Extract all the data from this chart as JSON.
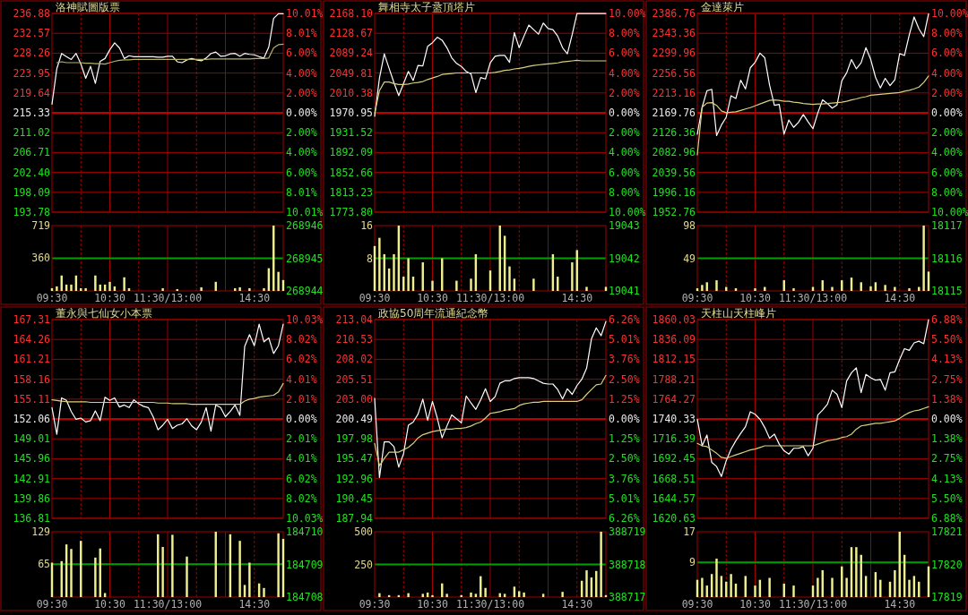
{
  "chart_data": [
    {
      "type": "line",
      "title": "洛神賦圖版票",
      "categories": [
        null,
        null,
        null,
        null,
        null,
        null,
        null,
        null,
        null,
        null,
        null,
        null,
        null,
        null,
        null,
        null,
        null,
        null,
        null,
        null,
        null,
        null,
        null,
        null,
        null,
        null,
        null,
        null,
        null,
        null,
        null,
        null,
        null,
        null,
        null,
        null,
        null,
        null,
        null,
        null,
        null,
        null,
        null,
        null,
        null,
        null,
        null,
        null,
        null
      ],
      "ylim": [
        193.78,
        236.88
      ],
      "yticks": [
        236.88,
        232.57,
        228.26,
        223.95,
        219.64,
        215.33,
        211.02,
        206.71,
        {
          "value": 202.4,
          "label": "202.40"
        },
        198.09,
        193.78
      ],
      "y2lim": [
        -10.01,
        10.01
      ],
      "y2ticks": [
        {
          "value": 10.01,
          "label": "10.01%"
        },
        {
          "value": 8.01,
          "label": "8.01%"
        },
        {
          "value": 6,
          "label": "6.00%"
        },
        {
          "value": 4,
          "label": "4.00%"
        },
        {
          "value": 2,
          "label": "2.00%"
        },
        {
          "value": 0,
          "label": "0.00%"
        },
        {
          "value": -2,
          "label": "2.00%"
        },
        {
          "value": -4,
          "label": "4.00%"
        },
        {
          "value": -6,
          "label": "6.00%"
        },
        {
          "value": -8.01,
          "label": "8.01%"
        },
        {
          "value": -10.01,
          "label": "10.01%"
        }
      ],
      "grid": true,
      "tick_labels": "y",
      "ref_lines": [
        {
          "axis": "y",
          "value": 215.33,
          "color": "#c00000"
        }
      ],
      "series": [
        {
          "color": "#ffffff",
          "values": [
            217.2,
            224.9,
            228.2,
            227.5,
            226.9,
            228.2,
            225.9,
            222.8,
            225.4,
            221.7,
            226.5,
            227.1,
            229.0,
            230.5,
            229.4,
            227.1,
            227.7,
            227.5,
            227.5,
            227.5,
            227.5,
            227.5,
            227.4,
            227.4,
            227.6,
            227.6,
            226.4,
            226.2,
            226.8,
            227.1,
            226.8,
            226.6,
            227.2,
            228.2,
            228.5,
            227.6,
            227.7,
            228.1,
            228.2,
            227.6,
            228.2,
            228.0,
            227.9,
            227.5,
            227.2,
            229.6,
            235.8,
            236.8,
            236.8
          ]
        },
        {
          "color": "#b8b068",
          "values": [
            null,
            226.2,
            226.4,
            226.2,
            226.2,
            226.2,
            226.2,
            226.1,
            226.1,
            226.0,
            226.0,
            225.9,
            226.2,
            226.5,
            226.7,
            226.8,
            226.8,
            226.9,
            226.9,
            226.9,
            226.9,
            226.9,
            226.9,
            226.9,
            226.9,
            226.9,
            226.9,
            226.9,
            226.9,
            226.9,
            226.9,
            226.9,
            226.9,
            227.0,
            227.0,
            227.0,
            227.0,
            227.0,
            227.0,
            227.0,
            227.0,
            227.0,
            227.1,
            227.1,
            227.1,
            227.2,
            229.4,
            230.1,
            230.2
          ]
        }
      ]
    },
    {
      "type": "line",
      "title": "舞相寺太子盝頂塔片",
      "categories": [
        null,
        null,
        null,
        null,
        null,
        null,
        null,
        null,
        null,
        null,
        null,
        null,
        null,
        null,
        null,
        null,
        null,
        null,
        null,
        null,
        null,
        null,
        null,
        null,
        null,
        null,
        null,
        null,
        null,
        null,
        null,
        null,
        null,
        null,
        null,
        null,
        null,
        null,
        null,
        null,
        null,
        null,
        null,
        null,
        null,
        null,
        null,
        null,
        null
      ],
      "ylim": [
        1773.8,
        2168.1
      ],
      "yticks": [
        {
          "value": 2168.1,
          "label": "2168.10"
        },
        2128.67,
        2089.24,
        2049.81,
        2010.38,
        1970.95,
        1931.52,
        1892.09,
        1852.66,
        1813.23,
        {
          "value": 1773.8,
          "label": "1773.80"
        }
      ],
      "y2lim": [
        -10,
        10
      ],
      "y2ticks": [
        {
          "value": 10,
          "label": "10.00%"
        },
        {
          "value": 8,
          "label": "8.00%"
        },
        {
          "value": 6,
          "label": "6.00%"
        },
        {
          "value": 4,
          "label": "4.00%"
        },
        {
          "value": 2,
          "label": "2.00%"
        },
        {
          "value": 0,
          "label": "0.00%"
        },
        {
          "value": -2,
          "label": "2.00%"
        },
        {
          "value": -4,
          "label": "4.00%"
        },
        {
          "value": -6,
          "label": "6.00%"
        },
        {
          "value": -8,
          "label": "8.00%"
        },
        {
          "value": -10,
          "label": "10.00%"
        }
      ],
      "grid": true,
      "tick_labels": "y",
      "ref_lines": [
        {
          "axis": "y",
          "value": 1970.95,
          "color": "#c00000"
        }
      ],
      "series": [
        {
          "color": "#ffffff",
          "values": [
            1964,
            2040,
            2088,
            2059,
            2031,
            2005,
            2029,
            2053,
            2035,
            2065,
            2064,
            2103,
            2110,
            2121,
            2115,
            2100,
            2080,
            2069,
            2063,
            2053,
            2048,
            2011,
            2041,
            2038,
            2070,
            2083,
            2085,
            2085,
            2071,
            2130,
            2100,
            2123,
            2145,
            2136,
            2127,
            2149,
            2138,
            2136,
            2123,
            2100,
            2088,
            2126,
            2168,
            2168,
            2168,
            2168,
            2168,
            2168,
            2168
          ]
        },
        {
          "color": "#d8d080",
          "values": [
            1970,
            2015,
            2032,
            2032,
            2029,
            2027,
            2027,
            2028,
            2030,
            2031,
            2033,
            2037,
            2040,
            2043,
            2047,
            2048,
            2049,
            2050,
            2050,
            2050,
            2050,
            2050,
            2050,
            2050,
            2050,
            2051,
            2053,
            2055,
            2056,
            2058,
            2059,
            2061,
            2063,
            2065,
            2066,
            2067,
            2068,
            2069,
            2070,
            2072,
            2073,
            2074,
            2075,
            2074,
            2074,
            2074,
            2074,
            2074,
            2074
          ]
        }
      ]
    },
    {
      "type": "line",
      "title": "金達萊片",
      "categories": [
        null,
        null,
        null,
        null,
        null,
        null,
        null,
        null,
        null,
        null,
        null,
        null,
        null,
        null,
        null,
        null,
        null,
        null,
        null,
        null,
        null,
        null,
        null,
        null,
        null,
        null,
        null,
        null,
        null,
        null,
        null,
        null,
        null,
        null,
        null,
        null,
        null,
        null,
        null,
        null,
        null,
        null,
        null,
        null,
        null,
        null,
        null,
        null,
        null
      ],
      "ylim": [
        1952.76,
        2386.76
      ],
      "yticks": [
        2386.76,
        2343.36,
        2299.96,
        2256.56,
        2213.16,
        2169.76,
        2126.36,
        2082.96,
        2039.56,
        1996.16,
        1952.76
      ],
      "y2lim": [
        -10,
        10
      ],
      "y2ticks": [
        {
          "value": 10,
          "label": "10.00%"
        },
        {
          "value": 8,
          "label": "8.00%"
        },
        {
          "value": 6,
          "label": "6.00%"
        },
        {
          "value": 4,
          "label": "4.00%"
        },
        {
          "value": 2,
          "label": "2.00%"
        },
        {
          "value": 0,
          "label": "0.00%"
        },
        {
          "value": -2,
          "label": "2.00%"
        },
        {
          "value": -4,
          "label": "4.00%"
        },
        {
          "value": -6,
          "label": "6.00%"
        },
        {
          "value": -8,
          "label": "8.00%"
        },
        {
          "value": -10,
          "label": "10.00%"
        }
      ],
      "grid": true,
      "tick_labels": "y",
      "ref_lines": [
        {
          "axis": "y",
          "value": 2169.76,
          "color": "#c00000"
        }
      ],
      "series": [
        {
          "color": "#ffffff",
          "values": [
            2123,
            2182,
            2218,
            2221,
            2120,
            2143,
            2160,
            2207,
            2201,
            2241,
            2222,
            2268,
            2280,
            2300,
            2290,
            2230,
            2186,
            2188,
            2123,
            2154,
            2138,
            2149,
            2166,
            2150,
            2135,
            2169,
            2198,
            2190,
            2180,
            2187,
            2240,
            2257,
            2286,
            2266,
            2279,
            2312,
            2286,
            2247,
            2224,
            2245,
            2229,
            2242,
            2299,
            2295,
            2340,
            2379,
            2353,
            2336,
            2386
          ]
        },
        {
          "color": "#d8d080",
          "values": [
            2078,
            2182,
            2191,
            2192,
            2186,
            2174,
            2170,
            2171,
            2172,
            2175,
            2178,
            2181,
            2185,
            2189,
            2193,
            2197,
            2198,
            2197,
            2195,
            2195,
            2193,
            2192,
            2190,
            2189,
            2188,
            2189,
            2189,
            2190,
            2191,
            2192,
            2193,
            2195,
            2198,
            2200,
            2203,
            2205,
            2208,
            2209,
            2210,
            2211,
            2212,
            2213,
            2214,
            2217,
            2219,
            2222,
            2226,
            2236,
            2250
          ]
        }
      ]
    },
    {
      "type": "bar",
      "color": "#f0f090",
      "categories": [
        "09:30",
        null,
        null,
        null,
        null,
        null,
        null,
        null,
        null,
        null,
        null,
        null,
        "10:30",
        null,
        null,
        null,
        null,
        null,
        null,
        null,
        null,
        null,
        null,
        null,
        "11:30/13:00",
        null,
        null,
        null,
        null,
        null,
        null,
        null,
        null,
        null,
        null,
        null,
        null,
        null,
        null,
        null,
        null,
        null,
        "14:30",
        null,
        null,
        null,
        null,
        null,
        null
      ],
      "ylim": [
        0,
        719
      ],
      "yticks": [
        360,
        719
      ],
      "y2lim": [
        268944,
        268946
      ],
      "y2ticks": [
        268944,
        268945,
        268946
      ],
      "grid": true,
      "ref_lines": [
        {
          "axis": "y",
          "value": 360,
          "color": "#00a000"
        }
      ],
      "values": [
        30,
        50,
        170,
        70,
        70,
        170,
        30,
        30,
        null,
        170,
        70,
        70,
        100,
        50,
        null,
        150,
        30,
        null,
        null,
        null,
        null,
        null,
        null,
        30,
        null,
        null,
        20,
        null,
        null,
        null,
        null,
        40,
        null,
        null,
        100,
        null,
        null,
        null,
        30,
        40,
        null,
        30,
        null,
        null,
        30,
        250,
        719,
        210,
        120
      ]
    },
    {
      "type": "bar",
      "color": "#f0f090",
      "categories": [
        "09:30",
        null,
        null,
        null,
        null,
        null,
        null,
        null,
        null,
        null,
        null,
        null,
        "10:30",
        null,
        null,
        null,
        null,
        null,
        null,
        null,
        null,
        null,
        null,
        null,
        "11:30/13:00",
        null,
        null,
        null,
        null,
        null,
        null,
        null,
        null,
        null,
        null,
        null,
        null,
        null,
        null,
        null,
        null,
        null,
        "14:30",
        null,
        null,
        null,
        null,
        null,
        null
      ],
      "ylim": [
        0,
        16
      ],
      "yticks": [
        8,
        16
      ],
      "y2lim": [
        19041,
        19043
      ],
      "y2ticks": [
        19041,
        19042,
        19043
      ],
      "grid": true,
      "ref_lines": [
        {
          "axis": "y",
          "value": 8,
          "color": "#00a000"
        }
      ],
      "values": [
        11,
        13,
        9,
        5.5,
        9,
        16,
        3.5,
        8,
        3.5,
        null,
        7,
        null,
        2.5,
        null,
        8,
        null,
        null,
        2.5,
        null,
        null,
        3,
        9,
        null,
        null,
        5,
        null,
        16,
        13.5,
        6,
        3,
        null,
        null,
        null,
        3,
        null,
        null,
        null,
        9,
        3.5,
        null,
        null,
        7,
        10,
        null,
        1,
        null,
        null,
        null,
        1
      ]
    },
    {
      "type": "bar",
      "color": "#f0f090",
      "categories": [
        "09:30",
        null,
        null,
        null,
        null,
        null,
        null,
        null,
        null,
        null,
        null,
        null,
        "10:30",
        null,
        null,
        null,
        null,
        null,
        null,
        null,
        null,
        null,
        null,
        null,
        "11:30/13:00",
        null,
        null,
        null,
        null,
        null,
        null,
        null,
        null,
        null,
        null,
        null,
        null,
        null,
        null,
        null,
        null,
        null,
        "14:30",
        null,
        null,
        null,
        null,
        null,
        null
      ],
      "ylim": [
        0,
        98
      ],
      "yticks": [
        49,
        98
      ],
      "y2lim": [
        18115,
        18117
      ],
      "y2ticks": [
        18115,
        18116,
        18117
      ],
      "grid": true,
      "ref_lines": [
        {
          "axis": "y",
          "value": 49,
          "color": "#00a000"
        }
      ],
      "values": [
        4,
        9,
        13,
        null,
        16,
        null,
        6,
        null,
        4,
        null,
        null,
        null,
        4,
        null,
        6,
        null,
        null,
        null,
        16,
        null,
        4,
        null,
        null,
        null,
        6,
        null,
        16,
        null,
        6,
        null,
        16,
        null,
        20,
        null,
        13,
        null,
        7,
        13,
        null,
        9,
        null,
        6,
        null,
        null,
        4,
        null,
        6,
        98,
        29
      ]
    },
    {
      "type": "line",
      "title": "董永與七仙女小本票",
      "categories": [
        null,
        null,
        null,
        null,
        null,
        null,
        null,
        null,
        null,
        null,
        null,
        null,
        null,
        null,
        null,
        null,
        null,
        null,
        null,
        null,
        null,
        null,
        null,
        null,
        null,
        null,
        null,
        null,
        null,
        null,
        null,
        null,
        null,
        null,
        null,
        null,
        null,
        null,
        null,
        null,
        null,
        null,
        null,
        null,
        null,
        null,
        null,
        null,
        null
      ],
      "ylim": [
        136.81,
        167.31
      ],
      "yticks": [
        167.31,
        164.26,
        161.21,
        158.16,
        155.11,
        152.06,
        149.01,
        145.96,
        142.91,
        139.86,
        136.81
      ],
      "y2lim": [
        -10.03,
        10.03
      ],
      "y2ticks": [
        {
          "value": 10.03,
          "label": "10.03%"
        },
        {
          "value": 8.02,
          "label": "8.02%"
        },
        {
          "value": 6.02,
          "label": "6.02%"
        },
        {
          "value": 4.01,
          "label": "4.01%"
        },
        {
          "value": 2.01,
          "label": "2.01%"
        },
        {
          "value": 0,
          "label": "0.00%"
        },
        {
          "value": -2.01,
          "label": "2.01%"
        },
        {
          "value": -4.01,
          "label": "4.01%"
        },
        {
          "value": -6.02,
          "label": "6.02%"
        },
        {
          "value": -8.02,
          "label": "8.02%"
        },
        {
          "value": -10.03,
          "label": "10.03%"
        }
      ],
      "grid": true,
      "tick_labels": "y",
      "ref_lines": [
        {
          "axis": "y",
          "value": 152.06,
          "color": "#c00000"
        }
      ],
      "series": [
        {
          "color": "#ffffff",
          "values": [
            153.8,
            149.7,
            155.3,
            154.9,
            153.2,
            152.0,
            152.2,
            151.6,
            151.8,
            153.3,
            151.8,
            155.4,
            154.9,
            155.3,
            153.9,
            154.2,
            153.8,
            155.0,
            154.4,
            154.0,
            153.8,
            152.4,
            150.4,
            151.1,
            152.0,
            150.6,
            151.1,
            151.3,
            152.1,
            151.0,
            150.4,
            151.6,
            153.8,
            150.2,
            154.2,
            153.8,
            152.4,
            153.2,
            154.2,
            152.6,
            163.2,
            165.0,
            163.3,
            166.6,
            163.9,
            164.5,
            162.1,
            163.3,
            166.6
          ]
        },
        {
          "color": "#d8d080",
          "values": [
            155.0,
            154.9,
            154.8,
            154.7,
            154.7,
            154.7,
            154.7,
            154.7,
            154.6,
            154.6,
            154.6,
            154.6,
            154.6,
            154.6,
            154.6,
            154.6,
            154.6,
            154.6,
            154.6,
            154.6,
            154.6,
            154.6,
            154.5,
            154.5,
            154.5,
            154.4,
            154.4,
            154.4,
            154.4,
            154.3,
            154.3,
            154.3,
            154.3,
            154.3,
            154.3,
            154.3,
            154.3,
            154.3,
            154.3,
            154.3,
            154.8,
            155.1,
            155.2,
            155.4,
            155.5,
            155.6,
            155.7,
            156.2,
            157.5
          ]
        }
      ]
    },
    {
      "type": "line",
      "title": "政協50周年流通紀念幣",
      "categories": [
        null,
        null,
        null,
        null,
        null,
        null,
        null,
        null,
        null,
        null,
        null,
        null,
        null,
        null,
        null,
        null,
        null,
        null,
        null,
        null,
        null,
        null,
        null,
        null,
        null,
        null,
        null,
        null,
        null,
        null,
        null,
        null,
        null,
        null,
        null,
        null,
        null,
        null,
        null,
        null,
        null,
        null,
        null,
        null,
        null,
        null,
        null,
        null,
        null
      ],
      "ylim": [
        187.94,
        213.04
      ],
      "yticks": [
        213.04,
        210.53,
        208.02,
        205.51,
        {
          "value": 203,
          "label": "203.00"
        },
        200.49,
        197.98,
        195.47,
        192.96,
        190.45,
        187.94
      ],
      "y2lim": [
        -6.26,
        6.26
      ],
      "y2ticks": [
        {
          "value": 6.26,
          "label": "6.26%"
        },
        {
          "value": 5.01,
          "label": "5.01%"
        },
        {
          "value": 3.76,
          "label": "3.76%"
        },
        {
          "value": 2.5,
          "label": "2.50%"
        },
        {
          "value": 1.25,
          "label": "1.25%"
        },
        {
          "value": 0,
          "label": "0.00%"
        },
        {
          "value": -1.25,
          "label": "1.25%"
        },
        {
          "value": -2.5,
          "label": "2.50%"
        },
        {
          "value": -3.76,
          "label": "3.76%"
        },
        {
          "value": -5.01,
          "label": "5.01%"
        },
        {
          "value": -6.26,
          "label": "6.26%"
        }
      ],
      "grid": true,
      "tick_labels": "y",
      "ref_lines": [
        {
          "axis": "y",
          "value": 200.49,
          "color": "#c00000"
        }
      ],
      "series": [
        {
          "color": "#ffffff",
          "values": [
            203.1,
            193.1,
            197.6,
            197.6,
            197.0,
            194.4,
            196.1,
            199.7,
            200.1,
            201.1,
            203.0,
            200.3,
            202.7,
            200.6,
            198.1,
            199.6,
            201.0,
            200.5,
            200.0,
            203.4,
            202.5,
            201.7,
            202.9,
            204.3,
            202.7,
            203.3,
            205.0,
            205.3,
            205.3,
            205.6,
            205.7,
            205.7,
            205.7,
            205.6,
            205.3,
            205.0,
            204.9,
            204.9,
            204.2,
            203.0,
            204.3,
            203.6,
            204.7,
            205.5,
            206.9,
            210.6,
            212.0,
            211.0,
            212.8
          ]
        },
        {
          "color": "#d8d080",
          "values": [
            197.4,
            194.6,
            195.5,
            196.3,
            196.3,
            196.3,
            196.6,
            196.9,
            197.4,
            198.1,
            198.5,
            198.7,
            198.9,
            199.0,
            199.1,
            199.2,
            199.2,
            199.3,
            199.3,
            199.4,
            199.6,
            199.9,
            200.1,
            200.6,
            201.2,
            201.3,
            201.4,
            201.6,
            201.7,
            201.8,
            202.2,
            202.4,
            202.5,
            202.6,
            202.6,
            202.7,
            202.7,
            202.7,
            202.7,
            202.7,
            202.7,
            202.7,
            202.7,
            202.9,
            203.6,
            204.2,
            204.8,
            204.9,
            206.0
          ]
        }
      ]
    },
    {
      "type": "line",
      "title": "天柱山天柱峰片",
      "categories": [
        null,
        null,
        null,
        null,
        null,
        null,
        null,
        null,
        null,
        null,
        null,
        null,
        null,
        null,
        null,
        null,
        null,
        null,
        null,
        null,
        null,
        null,
        null,
        null,
        null,
        null,
        null,
        null,
        null,
        null,
        null,
        null,
        null,
        null,
        null,
        null,
        null,
        null,
        null,
        null,
        null,
        null,
        null,
        null,
        null,
        null,
        null,
        null,
        null
      ],
      "ylim": [
        1620.63,
        1860.03
      ],
      "yticks": [
        1860.03,
        1836.09,
        1812.15,
        1788.21,
        1764.27,
        1740.33,
        1716.39,
        1692.45,
        1668.51,
        1644.57,
        1620.63
      ],
      "y2lim": [
        -6.88,
        6.88
      ],
      "y2ticks": [
        {
          "value": 6.88,
          "label": "6.88%"
        },
        {
          "value": 5.5,
          "label": "5.50%"
        },
        {
          "value": 4.13,
          "label": "4.13%"
        },
        {
          "value": 2.75,
          "label": "2.75%"
        },
        {
          "value": 1.38,
          "label": "1.38%"
        },
        {
          "value": 0,
          "label": "0.00%"
        },
        {
          "value": -1.38,
          "label": "1.38%"
        },
        {
          "value": -2.75,
          "label": "2.75%"
        },
        {
          "value": -4.13,
          "label": "4.13%"
        },
        {
          "value": -5.5,
          "label": "5.50%"
        },
        {
          "value": -6.88,
          "label": "6.88%"
        }
      ],
      "grid": true,
      "tick_labels": "y",
      "ref_lines": [
        {
          "axis": "y",
          "value": 1740.33,
          "color": "#c00000"
        }
      ],
      "series": [
        {
          "color": "#ffffff",
          "values": [
            1740,
            1708,
            1721,
            1688,
            1683,
            1671,
            1690,
            1704,
            1714,
            1723,
            1731,
            1749,
            1746,
            1740,
            1730,
            1717,
            1722,
            1710,
            1702,
            1698,
            1705,
            1705,
            1707,
            1696,
            1705,
            1745,
            1751,
            1758,
            1775,
            1770,
            1754,
            1786,
            1796,
            1802,
            1772,
            1794,
            1790,
            1787,
            1788,
            1775,
            1796,
            1797,
            1812,
            1825,
            1823,
            1832,
            1834,
            1831,
            1860
          ]
        },
        {
          "color": "#d8d080",
          "values": [
            1711,
            1708,
            1707,
            1703,
            1699,
            1694,
            1693,
            1695,
            1697,
            1699,
            1701,
            1703,
            1704,
            1706,
            1708,
            1708,
            1708,
            1708,
            1708,
            1708,
            1708,
            1708,
            1708,
            1708,
            1708,
            1710,
            1712,
            1714,
            1715,
            1716,
            1718,
            1719,
            1722,
            1728,
            1732,
            1733,
            1734,
            1735,
            1735,
            1736,
            1737,
            1738,
            1741,
            1745,
            1748,
            1750,
            1751,
            1753,
            1755
          ]
        }
      ]
    },
    {
      "type": "bar",
      "color": "#f0f090",
      "categories": [
        "09:30",
        null,
        null,
        null,
        null,
        null,
        null,
        null,
        null,
        null,
        null,
        null,
        "10:30",
        null,
        null,
        null,
        null,
        null,
        null,
        null,
        null,
        null,
        null,
        null,
        "11:30/13:00",
        null,
        null,
        null,
        null,
        null,
        null,
        null,
        null,
        null,
        null,
        null,
        null,
        null,
        null,
        null,
        null,
        null,
        "14:30",
        null,
        null,
        null,
        null,
        null,
        null
      ],
      "ylim": [
        0,
        129
      ],
      "yticks": [
        65,
        129
      ],
      "y2lim": [
        184708,
        184710
      ],
      "y2ticks": [
        184708,
        184709,
        184710
      ],
      "grid": true,
      "ref_lines": [
        {
          "axis": "y",
          "value": 65,
          "color": "#00a000"
        }
      ],
      "values": [
        68,
        null,
        71,
        104,
        95,
        null,
        111,
        null,
        null,
        78,
        96,
        8,
        null,
        null,
        null,
        null,
        null,
        null,
        null,
        null,
        null,
        null,
        124,
        99,
        null,
        123,
        null,
        null,
        80,
        null,
        null,
        null,
        null,
        null,
        129,
        null,
        null,
        124,
        null,
        111,
        24,
        68,
        null,
        27,
        18,
        null,
        null,
        126,
        115
      ]
    },
    {
      "type": "bar",
      "color": "#f0f090",
      "categories": [
        "09:30",
        null,
        null,
        null,
        null,
        null,
        null,
        null,
        null,
        null,
        null,
        null,
        "10:30",
        null,
        null,
        null,
        null,
        null,
        null,
        null,
        null,
        null,
        null,
        null,
        "11:30/13:00",
        null,
        null,
        null,
        null,
        null,
        null,
        null,
        null,
        null,
        null,
        null,
        null,
        null,
        null,
        null,
        null,
        null,
        "14:30",
        null,
        null,
        null,
        null,
        null,
        null
      ],
      "ylim": [
        0,
        500
      ],
      "yticks": [
        250,
        500
      ],
      "y2lim": [
        388717,
        388719
      ],
      "y2ticks": [
        388717,
        388718,
        388719
      ],
      "grid": true,
      "ref_lines": [
        {
          "axis": "y",
          "value": 250,
          "color": "#00a000"
        }
      ],
      "values": [
        null,
        30,
        null,
        15,
        null,
        15,
        null,
        30,
        null,
        null,
        25,
        35,
        15,
        null,
        105,
        25,
        null,
        null,
        15,
        null,
        35,
        25,
        160,
        70,
        null,
        null,
        30,
        25,
        null,
        80,
        45,
        35,
        null,
        null,
        null,
        25,
        null,
        null,
        null,
        40,
        null,
        null,
        null,
        125,
        205,
        150,
        200,
        500,
        15
      ]
    },
    {
      "type": "bar",
      "color": "#f0f090",
      "categories": [
        "09:30",
        null,
        null,
        null,
        null,
        null,
        null,
        null,
        null,
        null,
        null,
        null,
        "10:30",
        null,
        null,
        null,
        null,
        null,
        null,
        null,
        null,
        null,
        null,
        null,
        "11:30/13:00",
        null,
        null,
        null,
        null,
        null,
        null,
        null,
        null,
        null,
        null,
        null,
        null,
        null,
        null,
        null,
        null,
        null,
        "14:30",
        null,
        null,
        null,
        null,
        null,
        null
      ],
      "ylim": [
        0,
        17
      ],
      "yticks": [
        9,
        17
      ],
      "y2lim": [
        17819,
        17821
      ],
      "y2ticks": [
        17819,
        17820,
        17821
      ],
      "grid": true,
      "ref_lines": [
        {
          "axis": "y",
          "value": 9,
          "color": "#00a000"
        }
      ],
      "values": [
        4.5,
        5,
        3,
        6,
        10,
        5.5,
        4,
        6,
        3.5,
        null,
        5.5,
        null,
        3,
        4.5,
        null,
        5,
        null,
        null,
        3.5,
        null,
        3,
        null,
        null,
        null,
        3,
        5,
        7,
        null,
        5,
        null,
        8,
        5,
        13,
        13,
        11,
        5.5,
        null,
        6.5,
        4.5,
        null,
        4,
        7,
        17,
        11,
        4.5,
        5.5,
        4,
        null,
        8
      ]
    }
  ]
}
